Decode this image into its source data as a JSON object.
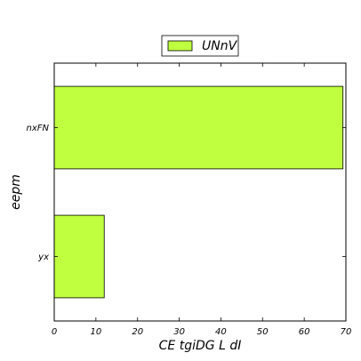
{
  "chart_data": {
    "type": "bar",
    "orientation": "horizontal",
    "categories": [
      "nxFN",
      "yx"
    ],
    "series": [
      {
        "name": "UNnV",
        "values": [
          69.3,
          12.0
        ],
        "color": "#bfff3f"
      }
    ],
    "xlabel": "CE  tgiDG L dI",
    "ylabel": "eepm",
    "xlim": [
      0,
      70
    ],
    "xticks": [
      0,
      10,
      20,
      30,
      40,
      50,
      60,
      70
    ],
    "grid": false,
    "legend_position": "top-center"
  }
}
